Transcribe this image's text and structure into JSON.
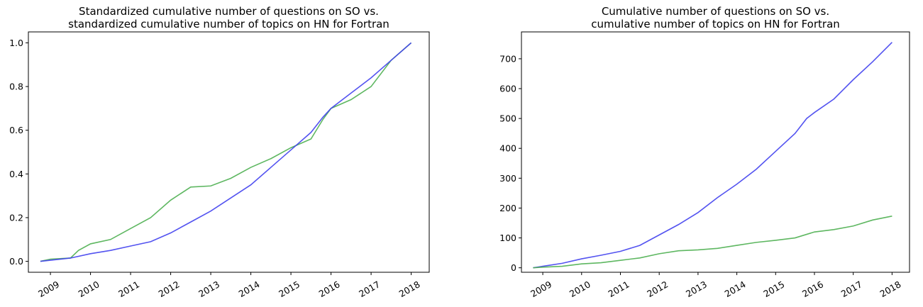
{
  "chart_data": [
    {
      "type": "line",
      "title": [
        "Standardized cumulative number of questions on SO vs.",
        "standardized cumulative number of topics on HN for Fortran"
      ],
      "xlabel": "",
      "ylabel": "",
      "xlim": [
        2008.45,
        2018.45
      ],
      "ylim": [
        -0.05,
        1.05
      ],
      "xticks": [
        2009,
        2010,
        2011,
        2012,
        2013,
        2014,
        2015,
        2016,
        2017,
        2018
      ],
      "xtick_labels": [
        "2009",
        "2010",
        "2011",
        "2012",
        "2013",
        "2014",
        "2015",
        "2016",
        "2017",
        "2018"
      ],
      "yticks": [
        0.0,
        0.2,
        0.4,
        0.6,
        0.8,
        1.0
      ],
      "ytick_labels": [
        "0.0",
        "0.2",
        "0.4",
        "0.6",
        "0.8",
        "1.0"
      ],
      "grid": false,
      "series": [
        {
          "color": "#4caf50",
          "x": [
            2008.75,
            2009.0,
            2009.5,
            2009.7,
            2010.0,
            2010.5,
            2011.0,
            2011.5,
            2012.0,
            2012.5,
            2013.0,
            2013.5,
            2014.0,
            2014.5,
            2015.0,
            2015.5,
            2015.8,
            2016.0,
            2016.5,
            2017.0,
            2017.5,
            2018.0
          ],
          "y": [
            0.0,
            0.01,
            0.015,
            0.05,
            0.08,
            0.1,
            0.15,
            0.2,
            0.28,
            0.34,
            0.345,
            0.38,
            0.43,
            0.47,
            0.52,
            0.56,
            0.65,
            0.7,
            0.74,
            0.8,
            0.92,
            1.0
          ]
        },
        {
          "color": "#4040ee",
          "x": [
            2008.75,
            2009.0,
            2009.5,
            2010.0,
            2010.5,
            2011.0,
            2011.5,
            2012.0,
            2012.5,
            2013.0,
            2013.5,
            2014.0,
            2014.5,
            2015.0,
            2015.5,
            2015.8,
            2016.0,
            2016.5,
            2017.0,
            2017.5,
            2018.0
          ],
          "y": [
            0.0,
            0.005,
            0.015,
            0.035,
            0.05,
            0.07,
            0.09,
            0.13,
            0.18,
            0.23,
            0.29,
            0.35,
            0.43,
            0.51,
            0.59,
            0.66,
            0.7,
            0.77,
            0.84,
            0.92,
            1.0
          ]
        }
      ]
    },
    {
      "type": "line",
      "title": [
        "Cumulative number of questions on SO vs.",
        "cumulative number of topics on HN for Fortran"
      ],
      "xlabel": "",
      "ylabel": "",
      "xlim": [
        2008.45,
        2018.45
      ],
      "ylim": [
        -15,
        790
      ],
      "xticks": [
        2009,
        2010,
        2011,
        2012,
        2013,
        2014,
        2015,
        2016,
        2017,
        2018
      ],
      "xtick_labels": [
        "2009",
        "2010",
        "2011",
        "2012",
        "2013",
        "2014",
        "2015",
        "2016",
        "2017",
        "2018"
      ],
      "yticks": [
        0,
        100,
        200,
        300,
        400,
        500,
        600,
        700
      ],
      "ytick_labels": [
        "0",
        "100",
        "200",
        "300",
        "400",
        "500",
        "600",
        "700"
      ],
      "grid": false,
      "series": [
        {
          "color": "#4040ee",
          "x": [
            2008.75,
            2009.0,
            2009.5,
            2010.0,
            2010.5,
            2011.0,
            2011.5,
            2012.0,
            2012.5,
            2013.0,
            2013.5,
            2014.0,
            2014.5,
            2015.0,
            2015.5,
            2015.8,
            2016.0,
            2016.5,
            2017.0,
            2017.5,
            2018.0
          ],
          "y": [
            0,
            5,
            15,
            30,
            42,
            55,
            75,
            110,
            145,
            185,
            235,
            280,
            330,
            390,
            450,
            500,
            520,
            565,
            630,
            690,
            755
          ]
        },
        {
          "color": "#4caf50",
          "x": [
            2008.75,
            2009.0,
            2009.5,
            2010.0,
            2010.5,
            2011.0,
            2011.5,
            2012.0,
            2012.5,
            2013.0,
            2013.5,
            2014.0,
            2014.5,
            2015.0,
            2015.5,
            2016.0,
            2016.5,
            2017.0,
            2017.5,
            2018.0
          ],
          "y": [
            0,
            2,
            5,
            13,
            17,
            25,
            33,
            47,
            57,
            60,
            65,
            75,
            85,
            92,
            100,
            120,
            128,
            140,
            160,
            173
          ]
        }
      ]
    }
  ]
}
